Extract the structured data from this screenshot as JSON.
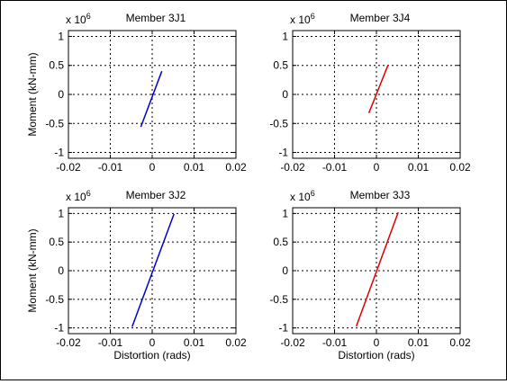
{
  "figure": {
    "background": "#ffffff",
    "grid": true,
    "grid_style": "dotted",
    "ylabel": "Moment (kN-mm)",
    "xlabel": "Distortion (rads)",
    "y_exponent": "x 10",
    "y_exponent_power": "6"
  },
  "chart_data": [
    {
      "type": "line",
      "title": "Member 3J1",
      "xlim": [
        -0.02,
        0.02
      ],
      "ylim": [
        -1.1,
        1.1
      ],
      "xticks": [
        -0.02,
        -0.01,
        0,
        0.01,
        0.02
      ],
      "xtick_labels": [
        "-0.02",
        "-0.01",
        "0",
        "0.01",
        "0.02"
      ],
      "yticks": [
        1,
        0.5,
        0,
        -0.5,
        -1
      ],
      "ytick_labels": [
        "1",
        "0.5",
        "0",
        "-0.5",
        "-1"
      ],
      "y_multiplier": "x 10^6",
      "ylabel": "Moment (kN-mm)",
      "xlabel": "",
      "grid": true,
      "series": [
        {
          "color": "#0000cc",
          "x": [
            -0.0027,
            0.0023
          ],
          "y": [
            -0.56,
            0.4
          ]
        }
      ]
    },
    {
      "type": "line",
      "title": "Member 3J4",
      "xlim": [
        -0.02,
        0.02
      ],
      "ylim": [
        -1.1,
        1.1
      ],
      "xticks": [
        -0.02,
        -0.01,
        0,
        0.01,
        0.02
      ],
      "xtick_labels": [
        "-0.02",
        "-0.01",
        "0",
        "0.01",
        "0.02"
      ],
      "yticks": [
        1,
        0.5,
        0,
        -0.5,
        -1
      ],
      "ytick_labels": [
        "1",
        "0.5",
        "0",
        "-0.5",
        "-1"
      ],
      "y_multiplier": "x 10^6",
      "ylabel": "",
      "xlabel": "",
      "grid": true,
      "series": [
        {
          "color": "#dd0000",
          "x": [
            -0.0018,
            0.0028
          ],
          "y": [
            -0.32,
            0.51
          ]
        }
      ]
    },
    {
      "type": "line",
      "title": "Member 3J2",
      "xlim": [
        -0.02,
        0.02
      ],
      "ylim": [
        -1.1,
        1.1
      ],
      "xticks": [
        -0.02,
        -0.01,
        0,
        0.01,
        0.02
      ],
      "xtick_labels": [
        "-0.02",
        "-0.01",
        "0",
        "0.01",
        "0.02"
      ],
      "yticks": [
        1,
        0.5,
        0,
        -0.5,
        -1
      ],
      "ytick_labels": [
        "1",
        "0.5",
        "0",
        "-0.5",
        "-1"
      ],
      "y_multiplier": "x 10^6",
      "ylabel": "Moment (kN-mm)",
      "xlabel": "Distortion (rads)",
      "grid": true,
      "series": [
        {
          "color": "#0000cc",
          "x": [
            -0.0048,
            0.0052
          ],
          "y": [
            -0.98,
            0.99
          ]
        }
      ]
    },
    {
      "type": "line",
      "title": "Member 3J3",
      "xlim": [
        -0.02,
        0.02
      ],
      "ylim": [
        -1.1,
        1.1
      ],
      "xticks": [
        -0.02,
        -0.01,
        0,
        0.01,
        0.02
      ],
      "xtick_labels": [
        "-0.02",
        "-0.01",
        "0",
        "0.01",
        "0.02"
      ],
      "yticks": [
        1,
        0.5,
        0,
        -0.5,
        -1
      ],
      "ytick_labels": [
        "1",
        "0.5",
        "0",
        "-0.5",
        "-1"
      ],
      "y_multiplier": "x 10^6",
      "ylabel": "",
      "xlabel": "Distortion (rads)",
      "grid": true,
      "series": [
        {
          "color": "#dd0000",
          "x": [
            -0.0048,
            0.0052
          ],
          "y": [
            -0.97,
            1.02
          ]
        }
      ]
    }
  ]
}
